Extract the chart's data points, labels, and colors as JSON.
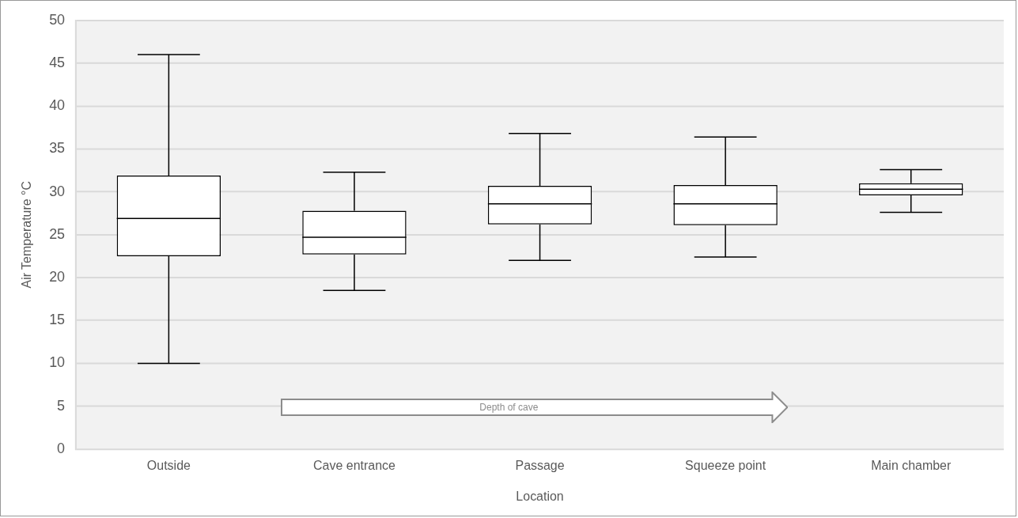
{
  "chart_data": {
    "type": "box",
    "xlabel": "Location",
    "ylabel": "Air Temperature °C",
    "categories": [
      "Outside",
      "Cave entrance",
      "Passage",
      "Squeeze point",
      "Main chamber"
    ],
    "color": "#000000",
    "boxes": [
      {
        "low": 10,
        "q1": 22.5,
        "median": 26.9,
        "q3": 31.9,
        "high": 46
      },
      {
        "low": 18.5,
        "q1": 22.7,
        "median": 24.7,
        "q3": 27.8,
        "high": 32.3
      },
      {
        "low": 22,
        "q1": 26.2,
        "median": 28.6,
        "q3": 30.7,
        "high": 36.8
      },
      {
        "low": 22.4,
        "q1": 26.1,
        "median": 28.6,
        "q3": 30.8,
        "high": 36.4
      },
      {
        "low": 27.6,
        "q1": 29.6,
        "median": 30.3,
        "q3": 31,
        "high": 32.6
      }
    ],
    "ylim": [
      0,
      50
    ],
    "yticks": [
      0,
      5,
      10,
      15,
      20,
      25,
      30,
      35,
      40,
      45,
      50
    ],
    "grid": "y",
    "annotations": [
      "Depth of cave"
    ]
  }
}
